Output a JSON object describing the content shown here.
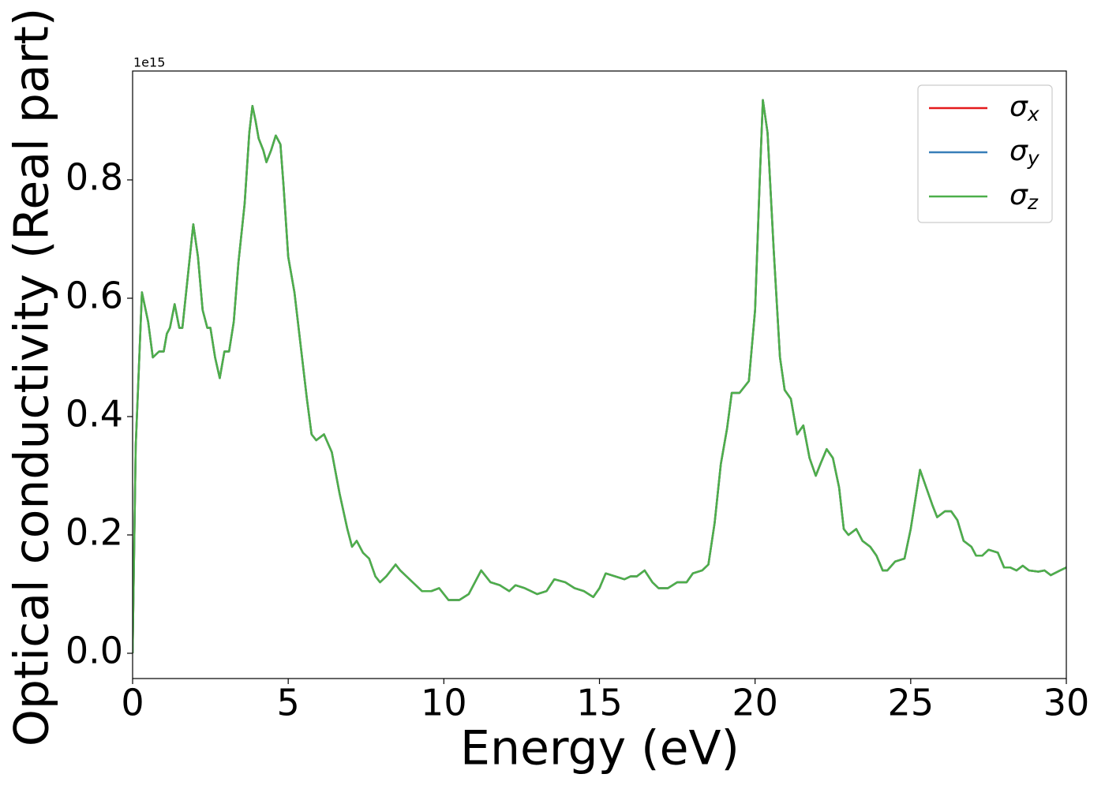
{
  "chart_data": {
    "type": "line",
    "xlabel": "Energy (eV)",
    "ylabel": "Optical conductivity (Real part)",
    "y_offset_label": "1e15",
    "xlim": [
      0,
      30
    ],
    "ylim": [
      -0.0427,
      0.984
    ],
    "xticks": [
      0,
      5,
      10,
      15,
      20,
      25,
      30
    ],
    "yticks": [
      {
        "value": 0,
        "label": "0.0"
      },
      {
        "value": 0.2,
        "label": "0.2"
      },
      {
        "value": 0.4,
        "label": "0.4"
      },
      {
        "value": 0.6,
        "label": "0.6"
      },
      {
        "value": 0.8,
        "label": "0.8"
      }
    ],
    "legend": "upper right",
    "x": [
      0,
      0.1,
      0.3,
      0.5,
      0.65,
      0.85,
      1.0,
      1.1,
      1.2,
      1.35,
      1.5,
      1.6,
      1.8,
      1.95,
      2.1,
      2.25,
      2.4,
      2.5,
      2.65,
      2.8,
      2.95,
      3.1,
      3.25,
      3.4,
      3.6,
      3.75,
      3.85,
      3.95,
      4.05,
      4.2,
      4.3,
      4.45,
      4.6,
      4.75,
      4.85,
      5.0,
      5.2,
      5.4,
      5.6,
      5.75,
      5.9,
      6.15,
      6.4,
      6.65,
      6.9,
      7.05,
      7.2,
      7.4,
      7.6,
      7.8,
      7.95,
      8.15,
      8.45,
      8.6,
      8.8,
      9.0,
      9.3,
      9.6,
      9.85,
      10.0,
      10.15,
      10.5,
      10.8,
      11.0,
      11.2,
      11.35,
      11.5,
      11.8,
      12.1,
      12.3,
      12.6,
      13.0,
      13.3,
      13.55,
      13.9,
      14.2,
      14.5,
      14.8,
      15.0,
      15.2,
      15.5,
      15.8,
      16.0,
      16.2,
      16.45,
      16.7,
      16.9,
      17.2,
      17.5,
      17.8,
      18.0,
      18.3,
      18.5,
      18.7,
      18.9,
      19.1,
      19.25,
      19.5,
      19.8,
      20.0,
      20.15,
      20.25,
      20.4,
      20.6,
      20.8,
      20.95,
      21.15,
      21.35,
      21.55,
      21.75,
      21.95,
      22.1,
      22.3,
      22.5,
      22.7,
      22.85,
      23.0,
      23.25,
      23.45,
      23.7,
      23.9,
      24.1,
      24.25,
      24.5,
      24.8,
      25.0,
      25.3,
      25.5,
      25.7,
      25.85,
      26.1,
      26.3,
      26.5,
      26.7,
      26.95,
      27.1,
      27.3,
      27.5,
      27.8,
      28.0,
      28.2,
      28.4,
      28.6,
      28.8,
      29.1,
      29.3,
      29.5,
      29.8,
      30.0
    ],
    "series": [
      {
        "name": "σx",
        "color": "#e41a1c",
        "values": [
          0,
          0.35,
          0.61,
          0.56,
          0.5,
          0.51,
          0.51,
          0.54,
          0.55,
          0.59,
          0.55,
          0.55,
          0.65,
          0.725,
          0.67,
          0.58,
          0.55,
          0.55,
          0.5,
          0.465,
          0.51,
          0.51,
          0.56,
          0.66,
          0.76,
          0.88,
          0.925,
          0.9,
          0.87,
          0.85,
          0.83,
          0.85,
          0.875,
          0.86,
          0.79,
          0.67,
          0.61,
          0.52,
          0.43,
          0.37,
          0.36,
          0.37,
          0.34,
          0.27,
          0.21,
          0.18,
          0.19,
          0.17,
          0.16,
          0.13,
          0.12,
          0.13,
          0.15,
          0.14,
          0.13,
          0.12,
          0.105,
          0.105,
          0.11,
          0.1,
          0.09,
          0.09,
          0.1,
          0.12,
          0.14,
          0.13,
          0.12,
          0.115,
          0.105,
          0.115,
          0.11,
          0.1,
          0.105,
          0.125,
          0.12,
          0.11,
          0.105,
          0.095,
          0.11,
          0.135,
          0.13,
          0.125,
          0.13,
          0.13,
          0.14,
          0.12,
          0.11,
          0.11,
          0.12,
          0.12,
          0.135,
          0.14,
          0.15,
          0.22,
          0.32,
          0.38,
          0.44,
          0.44,
          0.46,
          0.58,
          0.8,
          0.935,
          0.88,
          0.68,
          0.5,
          0.445,
          0.43,
          0.37,
          0.385,
          0.33,
          0.3,
          0.32,
          0.345,
          0.33,
          0.28,
          0.21,
          0.2,
          0.21,
          0.19,
          0.18,
          0.165,
          0.14,
          0.14,
          0.155,
          0.16,
          0.21,
          0.31,
          0.28,
          0.25,
          0.23,
          0.24,
          0.24,
          0.225,
          0.19,
          0.18,
          0.165,
          0.165,
          0.175,
          0.17,
          0.145,
          0.145,
          0.14,
          0.148,
          0.14,
          0.138,
          0.14,
          0.132,
          0.14,
          0.145
        ]
      },
      {
        "name": "σy",
        "color": "#377eb8",
        "values": [
          0,
          0.35,
          0.61,
          0.56,
          0.5,
          0.51,
          0.51,
          0.54,
          0.55,
          0.59,
          0.55,
          0.55,
          0.65,
          0.725,
          0.67,
          0.58,
          0.55,
          0.55,
          0.5,
          0.465,
          0.51,
          0.51,
          0.56,
          0.66,
          0.76,
          0.88,
          0.925,
          0.9,
          0.87,
          0.85,
          0.83,
          0.85,
          0.875,
          0.86,
          0.79,
          0.67,
          0.61,
          0.52,
          0.43,
          0.37,
          0.36,
          0.37,
          0.34,
          0.27,
          0.21,
          0.18,
          0.19,
          0.17,
          0.16,
          0.13,
          0.12,
          0.13,
          0.15,
          0.14,
          0.13,
          0.12,
          0.105,
          0.105,
          0.11,
          0.1,
          0.09,
          0.09,
          0.1,
          0.12,
          0.14,
          0.13,
          0.12,
          0.115,
          0.105,
          0.115,
          0.11,
          0.1,
          0.105,
          0.125,
          0.12,
          0.11,
          0.105,
          0.095,
          0.11,
          0.135,
          0.13,
          0.125,
          0.13,
          0.13,
          0.14,
          0.12,
          0.11,
          0.11,
          0.12,
          0.12,
          0.135,
          0.14,
          0.15,
          0.22,
          0.32,
          0.38,
          0.44,
          0.44,
          0.46,
          0.58,
          0.8,
          0.935,
          0.88,
          0.68,
          0.5,
          0.445,
          0.43,
          0.37,
          0.385,
          0.33,
          0.3,
          0.32,
          0.345,
          0.33,
          0.28,
          0.21,
          0.2,
          0.21,
          0.19,
          0.18,
          0.165,
          0.14,
          0.14,
          0.155,
          0.16,
          0.21,
          0.31,
          0.28,
          0.25,
          0.23,
          0.24,
          0.24,
          0.225,
          0.19,
          0.18,
          0.165,
          0.165,
          0.175,
          0.17,
          0.145,
          0.145,
          0.14,
          0.148,
          0.14,
          0.138,
          0.14,
          0.132,
          0.14,
          0.145
        ]
      },
      {
        "name": "σz",
        "color": "#4daf4a",
        "values": [
          0,
          0.35,
          0.61,
          0.56,
          0.5,
          0.51,
          0.51,
          0.54,
          0.55,
          0.59,
          0.55,
          0.55,
          0.65,
          0.725,
          0.67,
          0.58,
          0.55,
          0.55,
          0.5,
          0.465,
          0.51,
          0.51,
          0.56,
          0.66,
          0.76,
          0.88,
          0.925,
          0.9,
          0.87,
          0.85,
          0.83,
          0.85,
          0.875,
          0.86,
          0.79,
          0.67,
          0.61,
          0.52,
          0.43,
          0.37,
          0.36,
          0.37,
          0.34,
          0.27,
          0.21,
          0.18,
          0.19,
          0.17,
          0.16,
          0.13,
          0.12,
          0.13,
          0.15,
          0.14,
          0.13,
          0.12,
          0.105,
          0.105,
          0.11,
          0.1,
          0.09,
          0.09,
          0.1,
          0.12,
          0.14,
          0.13,
          0.12,
          0.115,
          0.105,
          0.115,
          0.11,
          0.1,
          0.105,
          0.125,
          0.12,
          0.11,
          0.105,
          0.095,
          0.11,
          0.135,
          0.13,
          0.125,
          0.13,
          0.13,
          0.14,
          0.12,
          0.11,
          0.11,
          0.12,
          0.12,
          0.135,
          0.14,
          0.15,
          0.22,
          0.32,
          0.38,
          0.44,
          0.44,
          0.46,
          0.58,
          0.8,
          0.935,
          0.88,
          0.68,
          0.5,
          0.445,
          0.43,
          0.37,
          0.385,
          0.33,
          0.3,
          0.32,
          0.345,
          0.33,
          0.28,
          0.21,
          0.2,
          0.21,
          0.19,
          0.18,
          0.165,
          0.14,
          0.14,
          0.155,
          0.16,
          0.21,
          0.31,
          0.28,
          0.25,
          0.23,
          0.24,
          0.24,
          0.225,
          0.19,
          0.18,
          0.165,
          0.165,
          0.175,
          0.17,
          0.145,
          0.145,
          0.14,
          0.148,
          0.14,
          0.138,
          0.14,
          0.132,
          0.14,
          0.145
        ]
      }
    ]
  }
}
